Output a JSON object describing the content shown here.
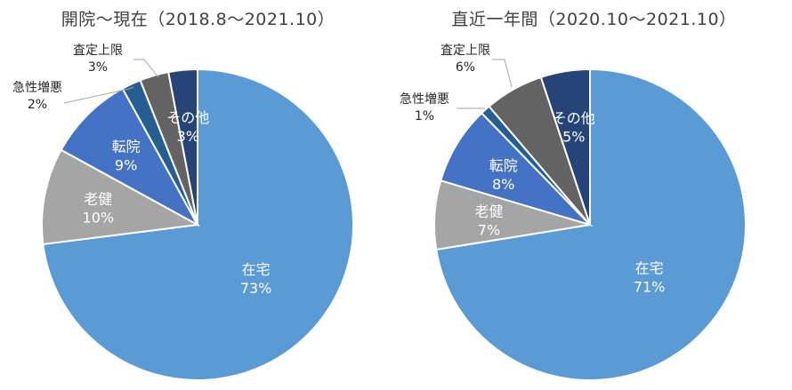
{
  "chart_data": [
    {
      "type": "pie",
      "title": "開院～現在（2018.8～2021.10）",
      "slices": [
        {
          "label": "在宅",
          "value": 73,
          "value_label": "73%",
          "color": "#5b9bd5",
          "label_pos": "inside"
        },
        {
          "label": "老健",
          "value": 10,
          "value_label": "10%",
          "color": "#a5a5a5",
          "label_pos": "inside"
        },
        {
          "label": "転院",
          "value": 9,
          "value_label": "9%",
          "color": "#4472c4",
          "label_pos": "inside"
        },
        {
          "label": "急性増悪",
          "value": 2,
          "value_label": "2%",
          "color": "#255e91",
          "label_pos": "outside"
        },
        {
          "label": "査定上限",
          "value": 3,
          "value_label": "3%",
          "color": "#636363",
          "label_pos": "outside"
        },
        {
          "label": "その他",
          "value": 3,
          "value_label": "3%",
          "color": "#264478",
          "label_pos": "inside"
        }
      ]
    },
    {
      "type": "pie",
      "title": "直近一年間（2020.10～2021.10）",
      "slices": [
        {
          "label": "在宅",
          "value": 71,
          "value_label": "71%",
          "color": "#5b9bd5",
          "label_pos": "inside"
        },
        {
          "label": "老健",
          "value": 7,
          "value_label": "7%",
          "color": "#a5a5a5",
          "label_pos": "inside"
        },
        {
          "label": "転院",
          "value": 8,
          "value_label": "8%",
          "color": "#4472c4",
          "label_pos": "inside"
        },
        {
          "label": "急性増悪",
          "value": 1,
          "value_label": "1%",
          "color": "#255e91",
          "label_pos": "outside"
        },
        {
          "label": "査定上限",
          "value": 6,
          "value_label": "6%",
          "color": "#636363",
          "label_pos": "outside"
        },
        {
          "label": "その他",
          "value": 5,
          "value_label": "5%",
          "color": "#264478",
          "label_pos": "inside"
        }
      ]
    }
  ]
}
